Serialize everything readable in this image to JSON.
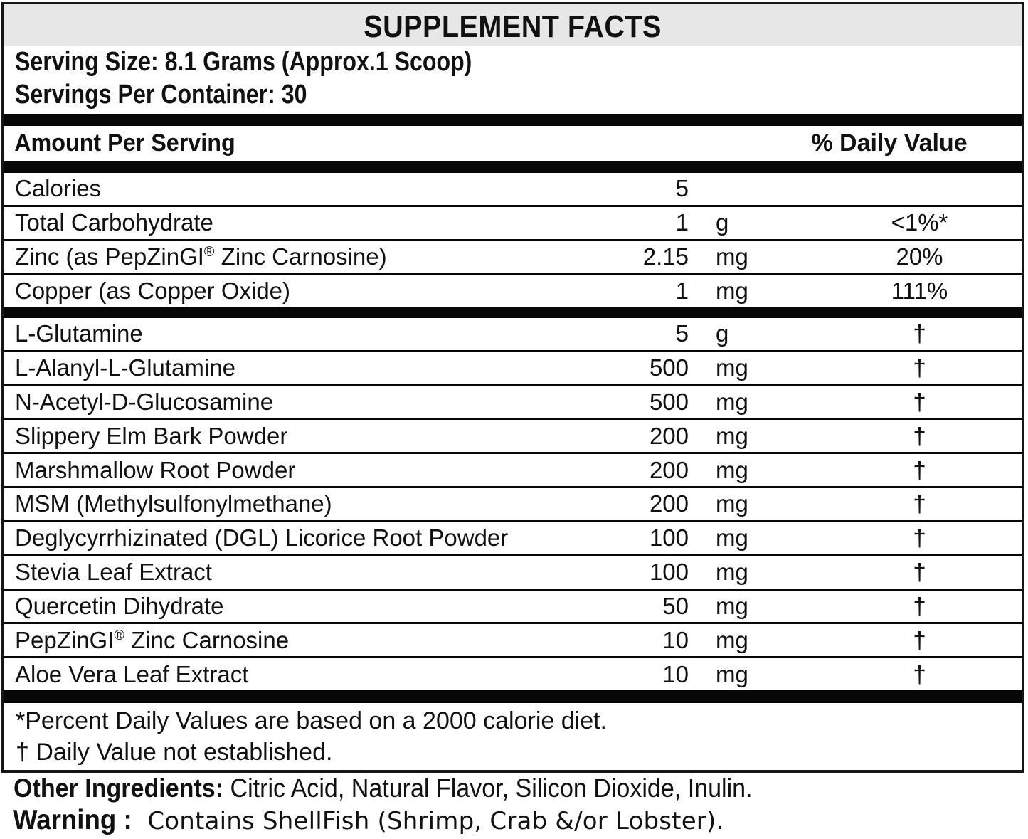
{
  "colors": {
    "band_gray": "#e7e7e7",
    "rule_black": "#070707",
    "text": "#111111"
  },
  "title": "SUPPLEMENT FACTS",
  "serving": {
    "size_line": "Serving Size: 8.1 Grams (Approx.1 Scoop)",
    "per_container_line": "Servings Per Container: 30"
  },
  "table": {
    "header": {
      "amount_col": "Amount Per Serving",
      "dv_col": "% Daily Value"
    },
    "macro_rows": [
      {
        "label": "Calories",
        "amount": "5",
        "unit": "",
        "dv": ""
      },
      {
        "label": "Total Carbohydrate",
        "amount": "1",
        "unit": "g",
        "dv": "<1%*"
      },
      {
        "label": "Zinc (as PepZinGI® Zinc Carnosine)",
        "amount": "2.15",
        "unit": "mg",
        "dv": "20%"
      },
      {
        "label": "Copper (as Copper Oxide)",
        "amount": "1",
        "unit": "mg",
        "dv": "111%"
      }
    ],
    "blend_rows": [
      {
        "label": "L-Glutamine",
        "amount": "5",
        "unit": "g",
        "dv": "†"
      },
      {
        "label": "L-Alanyl-L-Glutamine",
        "amount": "500",
        "unit": "mg",
        "dv": "†"
      },
      {
        "label": "N-Acetyl-D-Glucosamine",
        "amount": "500",
        "unit": "mg",
        "dv": "†"
      },
      {
        "label": "Slippery Elm Bark Powder",
        "amount": "200",
        "unit": "mg",
        "dv": "†"
      },
      {
        "label": "Marshmallow Root Powder",
        "amount": "200",
        "unit": "mg",
        "dv": "†"
      },
      {
        "label": "MSM (Methylsulfonylmethane)",
        "amount": "200",
        "unit": "mg",
        "dv": "†"
      },
      {
        "label": "Deglycyrrhizinated (DGL) Licorice Root Powder",
        "amount": "100",
        "unit": "mg",
        "dv": "†"
      },
      {
        "label": "Stevia Leaf Extract",
        "amount": "100",
        "unit": "mg",
        "dv": "†"
      },
      {
        "label": "Quercetin Dihydrate",
        "amount": "50",
        "unit": "mg",
        "dv": "†"
      },
      {
        "label": "PepZinGI® Zinc Carnosine",
        "amount": "10",
        "unit": "mg",
        "dv": "†"
      },
      {
        "label": "Aloe Vera Leaf Extract",
        "amount": "10",
        "unit": "mg",
        "dv": "†"
      }
    ],
    "footnotes": [
      "*Percent Daily Values are based on a 2000 calorie diet.",
      "† Daily Value not established."
    ]
  },
  "other_ingredients": {
    "label": "Other Ingredients:",
    "text": " Citric Acid, Natural Flavor, Silicon Dioxide, Inulin."
  },
  "warning": {
    "label": "Warning :",
    "text": " Contains ShellFish (Shrimp, Crab &/or Lobster)."
  }
}
